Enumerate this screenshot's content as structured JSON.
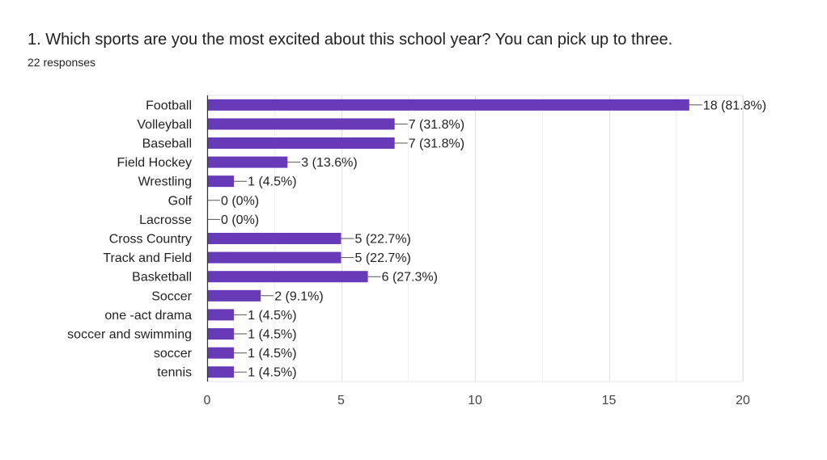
{
  "question": {
    "title": "1. Which sports are you the most excited about this school year? You can pick up to three.",
    "responses": "22 responses"
  },
  "colors": {
    "bar": "#673ab7",
    "grid": "#e6e6e6",
    "axis": "#333333",
    "text": "#222222"
  },
  "chart_data": {
    "type": "bar",
    "orientation": "horizontal",
    "title": "",
    "xlabel": "",
    "ylabel": "",
    "xlim": [
      0,
      20
    ],
    "x_ticks": [
      0,
      5,
      10,
      15,
      20
    ],
    "grid": true,
    "legend": "none",
    "categories": [
      "Football",
      "Volleyball",
      "Baseball",
      "Field Hockey",
      "Wrestling",
      "Golf",
      "Lacrosse",
      "Cross Country",
      "Track and Field",
      "Basketball",
      "Soccer",
      "one -act drama",
      "soccer and swimming",
      "soccer",
      "tennis"
    ],
    "values": [
      18,
      7,
      7,
      3,
      1,
      0,
      0,
      5,
      5,
      6,
      2,
      1,
      1,
      1,
      1
    ],
    "data_labels": [
      "18 (81.8%)",
      "7 (31.8%)",
      "7 (31.8%)",
      "3 (13.6%)",
      "1 (4.5%)",
      "0 (0%)",
      "0 (0%)",
      "5 (22.7%)",
      "5 (22.7%)",
      "6 (27.3%)",
      "2 (9.1%)",
      "1 (4.5%)",
      "1 (4.5%)",
      "1 (4.5%)",
      "1 (4.5%)"
    ]
  }
}
